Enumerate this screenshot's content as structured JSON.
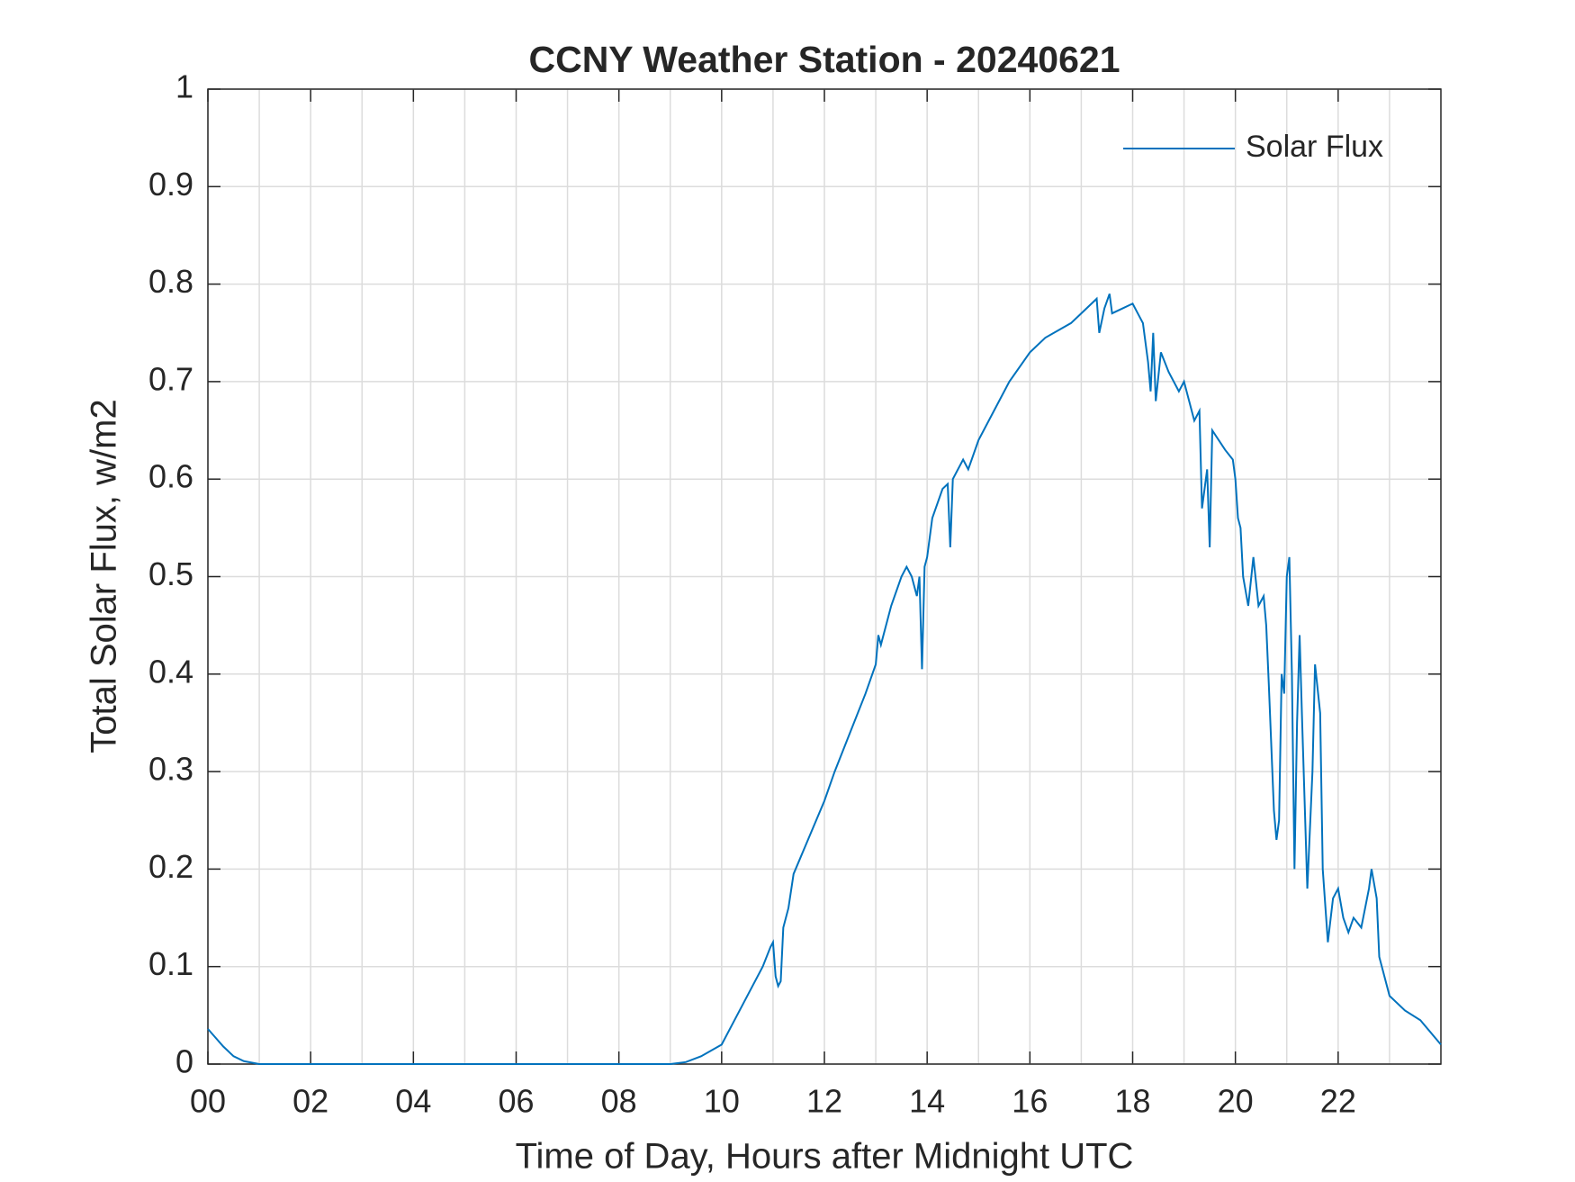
{
  "chart_data": {
    "type": "line",
    "title": "CCNY Weather Station - 20240621",
    "x_label": "Time of Day, Hours after Midnight UTC",
    "y_label": "Total Solar Flux, w/m2",
    "xlim": [
      0,
      24
    ],
    "ylim": [
      0,
      1
    ],
    "xticks": [
      {
        "value": 0,
        "label": "00"
      },
      {
        "value": 2,
        "label": "02"
      },
      {
        "value": 4,
        "label": "04"
      },
      {
        "value": 6,
        "label": "06"
      },
      {
        "value": 8,
        "label": "08"
      },
      10,
      12,
      14,
      16,
      18,
      20,
      22
    ],
    "xminor": [
      1,
      3,
      5,
      7,
      9,
      11,
      13,
      15,
      17,
      19,
      21,
      23
    ],
    "yticks": [
      0,
      0.1,
      0.2,
      0.3,
      0.4,
      0.5,
      0.6,
      0.7,
      0.8,
      0.9,
      1
    ],
    "grid": true,
    "legend": "upper-right",
    "series": [
      {
        "name": "Solar Flux",
        "color": "#0072bd",
        "x": [
          0,
          0.1,
          0.3,
          0.5,
          0.7,
          1.0,
          9.0,
          9.3,
          9.6,
          9.9,
          10.0,
          10.2,
          10.5,
          10.8,
          10.95,
          11.0,
          11.05,
          11.1,
          11.15,
          11.2,
          11.3,
          11.4,
          11.6,
          12.0,
          12.2,
          12.5,
          12.8,
          13.0,
          13.05,
          13.1,
          13.3,
          13.5,
          13.6,
          13.7,
          13.8,
          13.85,
          13.9,
          13.95,
          14.0,
          14.1,
          14.3,
          14.4,
          14.45,
          14.5,
          14.7,
          14.8,
          15.0,
          15.3,
          15.6,
          16.0,
          16.3,
          16.8,
          17.0,
          17.2,
          17.3,
          17.35,
          17.45,
          17.55,
          17.6,
          17.8,
          18.0,
          18.2,
          18.3,
          18.35,
          18.4,
          18.45,
          18.55,
          18.7,
          18.9,
          19.0,
          19.2,
          19.3,
          19.35,
          19.45,
          19.5,
          19.55,
          19.8,
          19.95,
          20.0,
          20.05,
          20.1,
          20.15,
          20.25,
          20.35,
          20.45,
          20.55,
          20.6,
          20.65,
          20.75,
          20.8,
          20.85,
          20.9,
          20.95,
          21.0,
          21.05,
          21.1,
          21.15,
          21.2,
          21.25,
          21.3,
          21.4,
          21.5,
          21.55,
          21.65,
          21.7,
          21.8,
          21.9,
          22.0,
          22.1,
          22.2,
          22.3,
          22.45,
          22.6,
          22.65,
          22.75,
          22.8,
          23.0,
          23.3,
          23.6,
          24.0
        ],
        "values": [
          0.036,
          0.03,
          0.018,
          0.008,
          0.003,
          0,
          0,
          0.002,
          0.008,
          0.017,
          0.02,
          0.04,
          0.07,
          0.1,
          0.12,
          0.125,
          0.09,
          0.08,
          0.085,
          0.14,
          0.16,
          0.195,
          0.22,
          0.27,
          0.3,
          0.34,
          0.38,
          0.41,
          0.44,
          0.43,
          0.47,
          0.5,
          0.51,
          0.5,
          0.48,
          0.5,
          0.405,
          0.51,
          0.52,
          0.56,
          0.59,
          0.595,
          0.53,
          0.6,
          0.62,
          0.61,
          0.64,
          0.67,
          0.7,
          0.73,
          0.745,
          0.76,
          0.77,
          0.78,
          0.785,
          0.75,
          0.775,
          0.79,
          0.77,
          0.775,
          0.78,
          0.76,
          0.72,
          0.69,
          0.75,
          0.68,
          0.73,
          0.71,
          0.69,
          0.7,
          0.66,
          0.67,
          0.57,
          0.61,
          0.53,
          0.65,
          0.63,
          0.62,
          0.6,
          0.56,
          0.55,
          0.5,
          0.47,
          0.52,
          0.47,
          0.48,
          0.45,
          0.39,
          0.26,
          0.23,
          0.25,
          0.4,
          0.38,
          0.5,
          0.52,
          0.4,
          0.2,
          0.35,
          0.44,
          0.35,
          0.18,
          0.3,
          0.41,
          0.36,
          0.2,
          0.125,
          0.17,
          0.18,
          0.15,
          0.135,
          0.15,
          0.14,
          0.18,
          0.2,
          0.17,
          0.11,
          0.07,
          0.055,
          0.045,
          0.02
        ]
      }
    ]
  }
}
